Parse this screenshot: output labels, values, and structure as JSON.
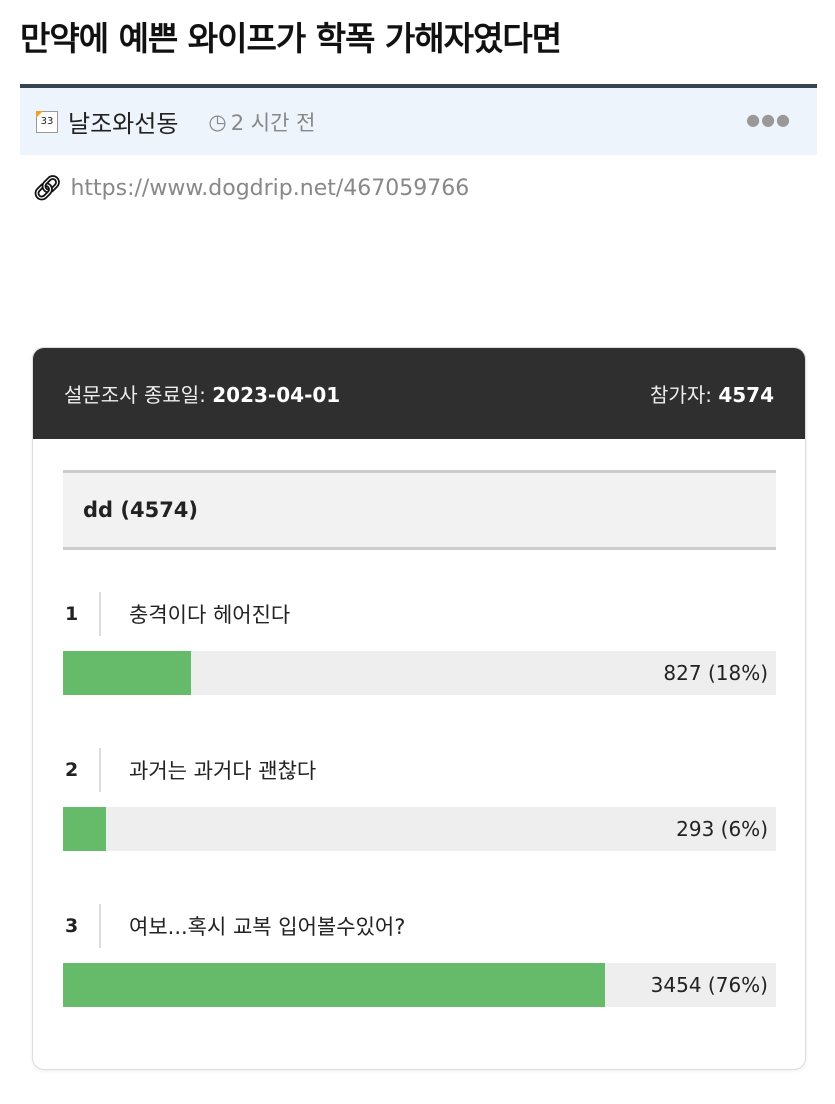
{
  "post": {
    "title": "만약에 예쁜 와이프가 학폭 가해자였다면",
    "author": "날조와선동",
    "author_icon": "33",
    "time": "2 시간 전",
    "more": "●●●",
    "url": "https://www.dogdrip.net/467059766"
  },
  "poll": {
    "end_label": "설문조사 종료일:",
    "end_date": "2023-04-01",
    "participants_label": "참가자:",
    "participants": "4574",
    "question": "dd (4574)",
    "accent": "#66bb6a",
    "options": [
      {
        "num": "1",
        "text": "충격이다 헤어진다",
        "result": "827 (18%)",
        "percent": 18
      },
      {
        "num": "2",
        "text": "과거는 과거다 괜찮다",
        "result": "293 (6%)",
        "percent": 6
      },
      {
        "num": "3",
        "text": "여보...혹시 교복 입어볼수있어?",
        "result": "3454 (76%)",
        "percent": 76
      }
    ]
  }
}
